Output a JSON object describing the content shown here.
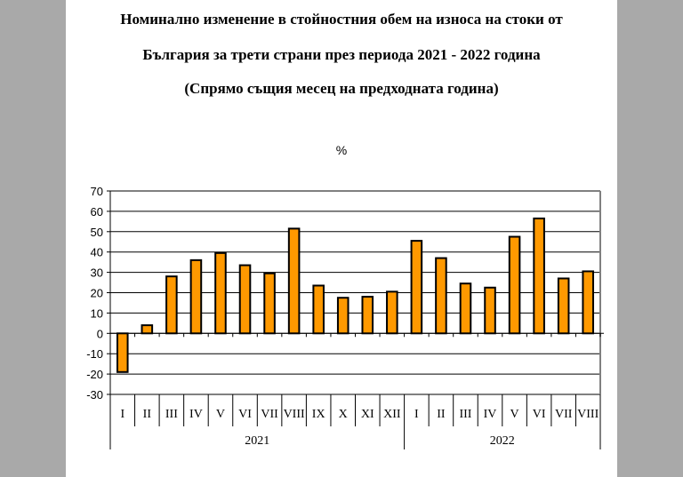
{
  "title": {
    "line1": "Номинално изменение в стойностния обем на износа на стоки от",
    "line2": "България за трети страни през периода 2021 - 2022 година",
    "line3": "(Спрямо същия месец на предходната година)"
  },
  "unit_label": "%",
  "chart_data": {
    "type": "bar",
    "title": "Номинално изменение в стойностния обем на износа на стоки от България за трети страни през периода 2021 - 2022 година (Спрямо същия месец на предходната година)",
    "ylabel": "%",
    "xlabel": "",
    "ylim": [
      -30,
      70
    ],
    "yticks": [
      70,
      60,
      50,
      40,
      30,
      20,
      10,
      0,
      -10,
      -20,
      -30
    ],
    "grid": true,
    "legend": null,
    "bar_color": "#ff9900",
    "groups": [
      {
        "label": "2021",
        "count": 12
      },
      {
        "label": "2022",
        "count": 8
      }
    ],
    "categories": [
      "I",
      "II",
      "III",
      "IV",
      "V",
      "VI",
      "VII",
      "VIII",
      "IX",
      "X",
      "XI",
      "XII",
      "I",
      "II",
      "III",
      "IV",
      "V",
      "VI",
      "VII",
      "VIII"
    ],
    "values": [
      -19,
      4,
      28,
      36,
      39.5,
      33.5,
      29.5,
      51.5,
      23.5,
      17.5,
      18,
      20.5,
      45.5,
      37,
      24.5,
      22.5,
      47.5,
      56.5,
      27,
      30.5
    ]
  }
}
